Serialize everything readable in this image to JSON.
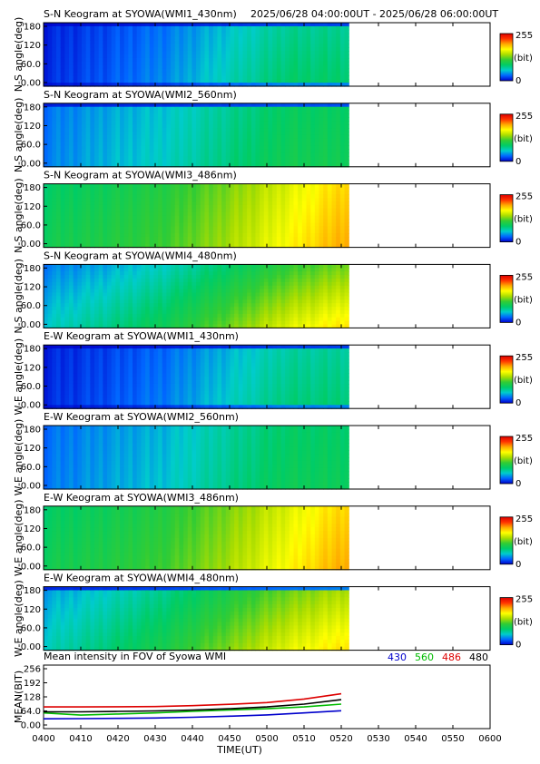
{
  "header": {
    "time_range": "2025/06/28 04:00:00UT - 2025/06/28 06:00:00UT"
  },
  "colorbar": {
    "max_label": "255",
    "unit_label": "(bit)",
    "min_label": "0",
    "colors": [
      "#0000cc",
      "#0066ff",
      "#00cccc",
      "#00cc66",
      "#33cc33",
      "#aadd00",
      "#ffff00",
      "#ffaa00",
      "#ff3300",
      "#dd0000"
    ]
  },
  "chart_data": [
    {
      "type": "heatmap",
      "title": "S-N Keogram at SYOWA(WMI1_430nm)",
      "ylabel": "N-S angle(deg)",
      "yticks": [
        "180",
        "120",
        "60.0",
        "0.00"
      ],
      "ylim": [
        0,
        180
      ],
      "x_range_ut": [
        "0400",
        "0600"
      ],
      "data_end_ut": "0522",
      "zlim": [
        0,
        255
      ],
      "profile": [
        12,
        24,
        39,
        63,
        85,
        85
      ],
      "gradient_bias": 0.2,
      "edge": "top-bottom-dark"
    },
    {
      "type": "heatmap",
      "title": "S-N Keogram at SYOWA(WMI2_560nm)",
      "ylabel": "N-S angle(deg)",
      "yticks": [
        "180",
        "120",
        "60.0",
        "0.00"
      ],
      "ylim": [
        0,
        180
      ],
      "x_range_ut": [
        "0400",
        "0600"
      ],
      "data_end_ut": "0522",
      "zlim": [
        0,
        255
      ],
      "profile": [
        35,
        50,
        60,
        78,
        95,
        95
      ],
      "gradient_bias": 0.1,
      "edge": "top-dark"
    },
    {
      "type": "heatmap",
      "title": "S-N Keogram at SYOWA(WMI3_486nm)",
      "ylabel": "N-S angle(deg)",
      "yticks": [
        "180",
        "120",
        "60.0",
        "0.00"
      ],
      "ylim": [
        0,
        180
      ],
      "x_range_ut": [
        "0400",
        "0600"
      ],
      "data_end_ut": "0522",
      "zlim": [
        0,
        255
      ],
      "profile": [
        95,
        103,
        115,
        140,
        170,
        200
      ],
      "gradient_bias": 0.1,
      "edge": "none"
    },
    {
      "type": "heatmap",
      "title": "S-N Keogram at SYOWA(WMI4_480nm)",
      "ylabel": "N-S angle(deg)",
      "yticks": [
        "180",
        "120",
        "60.0",
        "0.00"
      ],
      "ylim": [
        0,
        180
      ],
      "x_range_ut": [
        "0400",
        "0600"
      ],
      "data_end_ut": "0522",
      "zlim": [
        0,
        255
      ],
      "profile": [
        58,
        75,
        95,
        125,
        158,
        180
      ],
      "gradient_bias": 0.4,
      "edge": "none"
    },
    {
      "type": "heatmap",
      "title": "E-W Keogram at SYOWA(WMI1_430nm)",
      "ylabel": "W-E angle(deg)",
      "yticks": [
        "180",
        "120",
        "60.0",
        "0.00"
      ],
      "ylim": [
        0,
        180
      ],
      "x_range_ut": [
        "0400",
        "0600"
      ],
      "data_end_ut": "0522",
      "zlim": [
        0,
        255
      ],
      "profile": [
        12,
        22,
        35,
        58,
        80,
        82
      ],
      "gradient_bias": 0.2,
      "edge": "top-bottom-dark"
    },
    {
      "type": "heatmap",
      "title": "E-W Keogram at SYOWA(WMI2_560nm)",
      "ylabel": "W-E angle(deg)",
      "yticks": [
        "180",
        "120",
        "60.0",
        "0.00"
      ],
      "ylim": [
        0,
        180
      ],
      "x_range_ut": [
        "0400",
        "0600"
      ],
      "data_end_ut": "0522",
      "zlim": [
        0,
        255
      ],
      "profile": [
        33,
        45,
        55,
        75,
        92,
        92
      ],
      "gradient_bias": 0.1,
      "edge": "none"
    },
    {
      "type": "heatmap",
      "title": "E-W Keogram at SYOWA(WMI3_486nm)",
      "ylabel": "W-E angle(deg)",
      "yticks": [
        "180",
        "120",
        "60.0",
        "0.00"
      ],
      "ylim": [
        0,
        180
      ],
      "x_range_ut": [
        "0400",
        "0600"
      ],
      "data_end_ut": "0522",
      "zlim": [
        0,
        255
      ],
      "profile": [
        95,
        103,
        115,
        140,
        170,
        200
      ],
      "gradient_bias": 0.1,
      "edge": "none"
    },
    {
      "type": "heatmap",
      "title": "E-W Keogram at SYOWA(WMI4_480nm)",
      "ylabel": "W-E angle(deg)",
      "yticks": [
        "180",
        "120",
        "60.0",
        "0.00"
      ],
      "ylim": [
        0,
        180
      ],
      "x_range_ut": [
        "0400",
        "0600"
      ],
      "data_end_ut": "0522",
      "zlim": [
        0,
        255
      ],
      "profile": [
        62,
        80,
        100,
        130,
        160,
        180
      ],
      "gradient_bias": 0.3,
      "edge": "top-dark"
    },
    {
      "type": "line",
      "title": "Mean intensity in FOV of Syowa WMI",
      "xlabel": "TIME(UT)",
      "ylabel": "MEAN(BIT)",
      "ylim": [
        0,
        256
      ],
      "yticks": [
        "256",
        "192",
        "128",
        "64.0",
        "0.00"
      ],
      "x": [
        "0400",
        "0410",
        "0420",
        "0430",
        "0440",
        "0450",
        "0500",
        "0510",
        "0520"
      ],
      "legend_placement": "top-right",
      "series": [
        {
          "name": "430",
          "color": "#0000cc",
          "values": [
            28,
            29,
            30,
            32,
            35,
            40,
            46,
            55,
            65
          ]
        },
        {
          "name": "560",
          "color": "#00bb00",
          "values": [
            55,
            45,
            50,
            55,
            62,
            68,
            74,
            82,
            95
          ]
        },
        {
          "name": "486",
          "color": "#dd0000",
          "values": [
            82,
            82,
            83,
            84,
            88,
            94,
            102,
            118,
            142
          ]
        },
        {
          "name": "480",
          "color": "#000000",
          "values": [
            60,
            60,
            62,
            64,
            68,
            74,
            82,
            95,
            115
          ]
        }
      ]
    }
  ],
  "time_axis": {
    "ticks": [
      "0400",
      "0410",
      "0420",
      "0430",
      "0440",
      "0450",
      "0500",
      "0510",
      "0520",
      "0530",
      "0540",
      "0550",
      "0600"
    ]
  }
}
